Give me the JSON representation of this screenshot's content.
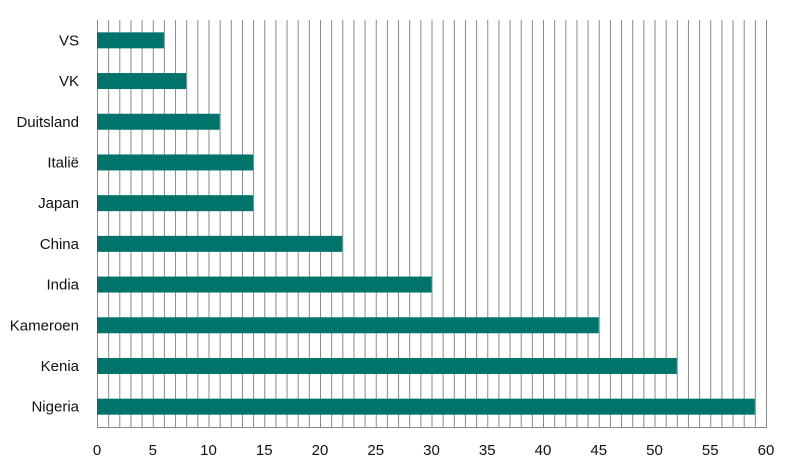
{
  "chart_data": {
    "type": "bar",
    "orientation": "horizontal",
    "categories": [
      "VS",
      "VK",
      "Duitsland",
      "Italië",
      "Japan",
      "China",
      "India",
      "Kameroen",
      "Kenia",
      "Nigeria"
    ],
    "values": [
      6,
      8,
      11,
      14,
      14,
      22,
      30,
      45,
      52,
      59
    ],
    "title": "",
    "xlabel": "",
    "ylabel": "",
    "xlim": [
      0,
      60
    ],
    "x_ticks": [
      0,
      5,
      10,
      15,
      20,
      25,
      30,
      35,
      40,
      45,
      50,
      55,
      60
    ],
    "minor_grid_step": 1,
    "grid": true,
    "legend": "none",
    "bar_color": "#00736b"
  }
}
